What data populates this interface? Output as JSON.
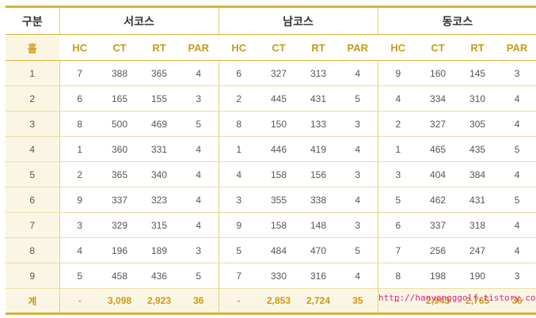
{
  "header": {
    "division_label": "구분",
    "hole_label": "홀",
    "courses": [
      "서코스",
      "남코스",
      "동코스"
    ],
    "columns": [
      "HC",
      "CT",
      "RT",
      "PAR"
    ]
  },
  "rows": [
    {
      "hole": "1",
      "west": [
        "7",
        "388",
        "365",
        "4"
      ],
      "south": [
        "6",
        "327",
        "313",
        "4"
      ],
      "east": [
        "9",
        "160",
        "145",
        "3"
      ]
    },
    {
      "hole": "2",
      "west": [
        "6",
        "165",
        "155",
        "3"
      ],
      "south": [
        "2",
        "445",
        "431",
        "5"
      ],
      "east": [
        "4",
        "334",
        "310",
        "4"
      ]
    },
    {
      "hole": "3",
      "west": [
        "8",
        "500",
        "469",
        "5"
      ],
      "south": [
        "8",
        "150",
        "133",
        "3"
      ],
      "east": [
        "2",
        "327",
        "305",
        "4"
      ]
    },
    {
      "hole": "4",
      "west": [
        "1",
        "360",
        "331",
        "4"
      ],
      "south": [
        "1",
        "446",
        "419",
        "4"
      ],
      "east": [
        "1",
        "465",
        "435",
        "5"
      ]
    },
    {
      "hole": "5",
      "west": [
        "2",
        "365",
        "340",
        "4"
      ],
      "south": [
        "4",
        "158",
        "156",
        "3"
      ],
      "east": [
        "3",
        "404",
        "384",
        "4"
      ]
    },
    {
      "hole": "6",
      "west": [
        "9",
        "337",
        "323",
        "4"
      ],
      "south": [
        "3",
        "355",
        "338",
        "4"
      ],
      "east": [
        "5",
        "462",
        "431",
        "5"
      ]
    },
    {
      "hole": "7",
      "west": [
        "3",
        "329",
        "315",
        "4"
      ],
      "south": [
        "9",
        "158",
        "148",
        "3"
      ],
      "east": [
        "6",
        "337",
        "318",
        "4"
      ]
    },
    {
      "hole": "8",
      "west": [
        "4",
        "196",
        "189",
        "3"
      ],
      "south": [
        "5",
        "484",
        "470",
        "5"
      ],
      "east": [
        "7",
        "256",
        "247",
        "4"
      ]
    },
    {
      "hole": "9",
      "west": [
        "5",
        "458",
        "436",
        "5"
      ],
      "south": [
        "7",
        "330",
        "316",
        "4"
      ],
      "east": [
        "8",
        "198",
        "190",
        "3"
      ]
    }
  ],
  "total": {
    "label": "계",
    "west": [
      "-",
      "3,098",
      "2,923",
      "36"
    ],
    "south": [
      "-",
      "2,853",
      "2,724",
      "35"
    ],
    "east": [
      "-",
      "2,943",
      "2,765",
      "36"
    ]
  },
  "watermark": "http://hanyangggolf.tistory.com",
  "colors": {
    "accent": "#d6b23a",
    "header_text": "#c89a1a",
    "first_col_bg": "#fbf6e4",
    "watermark": "#e0208c"
  }
}
